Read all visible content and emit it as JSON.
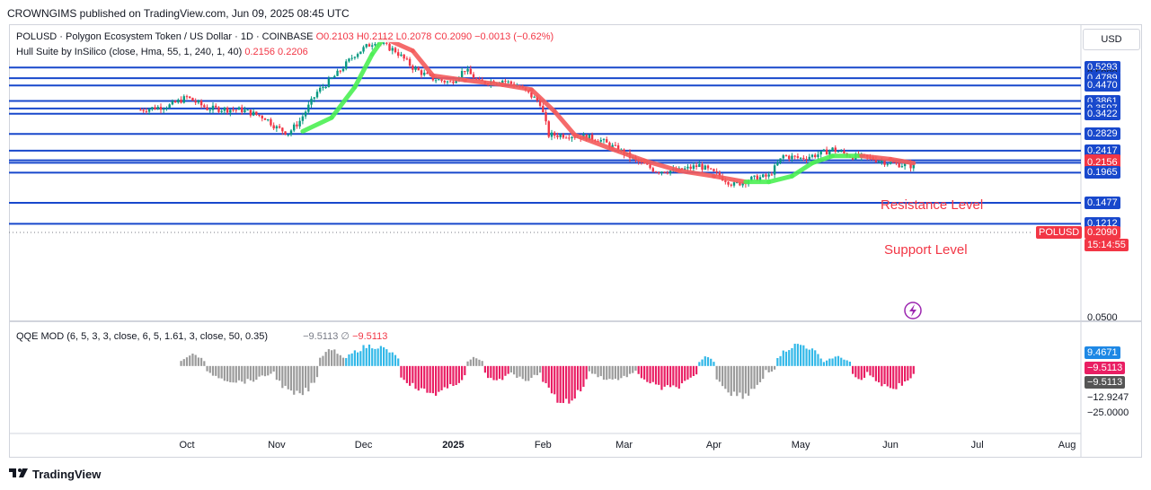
{
  "header": {
    "published": "CROWNGIMS published on TradingView.com, Jun 09, 2025 08:45 UTC"
  },
  "footer": {
    "brand": "TradingView",
    "logo": "tradingview-logo"
  },
  "legend": {
    "symbol": "POLUSD · Polygon Ecosystem Token / US Dollar · 1D · COINBASE",
    "ohlc": "O0.2103  H0.2112  L0.2078  C0.2090  −0.0013 (−0.62%)",
    "indicator_name": "Hull Suite by InSilico (close, Hma, 55, 1, 240, 1, 40)",
    "indicator_values": "0.2156  0.2206",
    "qqe_name": "QQE MOD (6, 5, 3, 3, close, 6, 5, 1.61, 3, close, 50, 0.35)",
    "qqe_v1": "−9.5113",
    "qqe_sym": "∅",
    "qqe_v2": "−9.5113"
  },
  "currency": "USD",
  "annotations": {
    "resistance": "Resistance Level",
    "support": "Support Level"
  },
  "colors": {
    "up": "#089981",
    "down": "#f23645",
    "level_line": "#1848cc",
    "hull_up": "#4cf054",
    "hull_down": "#f45b5b",
    "qqe_blue": "#31b8e8",
    "qqe_pink": "#e91e63",
    "qqe_gray": "#9b9b9b",
    "annotation": "#f23645"
  },
  "chart_data": {
    "type": "candlestick",
    "title": "POLUSD · Polygon Ecosystem Token / US Dollar · 1D · COINBASE",
    "x_ticks": [
      "Oct",
      "Nov",
      "Dec",
      "2025",
      "Feb",
      "Mar",
      "Apr",
      "May",
      "Jun",
      "Jul",
      "Aug"
    ],
    "y_scale": "log",
    "y_range": [
      0.05,
      0.6
    ],
    "y_tick_labels_plain": [
      "0.5000",
      "0.0500"
    ],
    "horizontal_levels": [
      0.5293,
      0.4789,
      0.447,
      0.3861,
      0.3597,
      0.3422,
      0.2829,
      0.2417,
      0.2206,
      0.2156,
      0.1965,
      0.1477,
      0.1212
    ],
    "price_axis_labels": [
      {
        "value": "0.5293",
        "style": "blue"
      },
      {
        "value": "0.5000",
        "style": "plain"
      },
      {
        "value": "0.4789",
        "style": "blue"
      },
      {
        "value": "0.4470",
        "style": "blue"
      },
      {
        "value": "0.3861",
        "style": "blue"
      },
      {
        "value": "0.3597",
        "style": "blue"
      },
      {
        "value": "0.3422",
        "style": "blue"
      },
      {
        "value": "0.2829",
        "style": "blue"
      },
      {
        "value": "0.2417",
        "style": "blue"
      },
      {
        "value": "0.2206",
        "style": "red"
      },
      {
        "value": "0.2156",
        "style": "red"
      },
      {
        "value": "0.1965",
        "style": "blue"
      },
      {
        "value": "0.1477",
        "style": "blue"
      },
      {
        "value": "0.1212",
        "style": "blue"
      },
      {
        "value": "0.0500",
        "style": "plain"
      }
    ],
    "last_price": {
      "symbol": "POLUSD",
      "value": "0.2090",
      "countdown": "15:14:55"
    },
    "price_path": [
      [
        "Sep 15",
        0.355
      ],
      [
        "Sep 25",
        0.37
      ],
      [
        "Oct 1",
        0.4
      ],
      [
        "Oct 8",
        0.36
      ],
      [
        "Oct 20",
        0.355
      ],
      [
        "Oct 28",
        0.33
      ],
      [
        "Nov 1",
        0.3
      ],
      [
        "Nov 5",
        0.285
      ],
      [
        "Nov 9",
        0.32
      ],
      [
        "Nov 15",
        0.42
      ],
      [
        "Nov 22",
        0.5
      ],
      [
        "Nov 28",
        0.6
      ],
      [
        "Dec 5",
        0.68
      ],
      [
        "Dec 12",
        0.62
      ],
      [
        "Dec 18",
        0.53
      ],
      [
        "Dec 24",
        0.48
      ],
      [
        "Dec 31",
        0.46
      ],
      [
        "Jan 5",
        0.52
      ],
      [
        "Jan 10",
        0.46
      ],
      [
        "Jan 18",
        0.47
      ],
      [
        "Jan 24",
        0.44
      ],
      [
        "Jan 31",
        0.38
      ],
      [
        "Feb 3",
        0.28
      ],
      [
        "Feb 10",
        0.28
      ],
      [
        "Feb 20",
        0.27
      ],
      [
        "Feb 28",
        0.24
      ],
      [
        "Mar 5",
        0.22
      ],
      [
        "Mar 12",
        0.2
      ],
      [
        "Mar 20",
        0.2
      ],
      [
        "Mar 27",
        0.21
      ],
      [
        "Apr 3",
        0.19
      ],
      [
        "Apr 8",
        0.175
      ],
      [
        "Apr 14",
        0.185
      ],
      [
        "Apr 20",
        0.19
      ],
      [
        "Apr 25",
        0.23
      ],
      [
        "May 1",
        0.225
      ],
      [
        "May 8",
        0.235
      ],
      [
        "May 12",
        0.245
      ],
      [
        "May 18",
        0.23
      ],
      [
        "May 25",
        0.225
      ],
      [
        "Jun 1",
        0.215
      ],
      [
        "Jun 9",
        0.209
      ]
    ],
    "hull_suite": [
      [
        "Nov 10",
        0.29
      ],
      [
        "Nov 20",
        0.33
      ],
      [
        "Nov 28",
        0.44
      ],
      [
        "Dec 4",
        0.6
      ],
      [
        "Dec 8",
        0.7
      ],
      [
        "Dec 18",
        0.62
      ],
      [
        "Dec 25",
        0.49
      ],
      [
        "Jan 5",
        0.47
      ],
      [
        "Jan 18",
        0.45
      ],
      [
        "Jan 28",
        0.43
      ],
      [
        "Feb 5",
        0.35
      ],
      [
        "Feb 12",
        0.28
      ],
      [
        "Feb 25",
        0.245
      ],
      [
        "Mar 8",
        0.22
      ],
      [
        "Mar 20",
        0.2
      ],
      [
        "Apr 1",
        0.19
      ],
      [
        "Apr 12",
        0.18
      ],
      [
        "Apr 20",
        0.18
      ],
      [
        "Apr 28",
        0.19
      ],
      [
        "May 5",
        0.215
      ],
      [
        "May 12",
        0.23
      ],
      [
        "May 22",
        0.23
      ],
      [
        "Jun 1",
        0.223
      ],
      [
        "Jun 9",
        0.215
      ]
    ],
    "qqe_ylim": [
      -25,
      12
    ],
    "qqe_axis_labels": [
      {
        "value": "9.4671",
        "style": "blue"
      },
      {
        "value": "−9.5113",
        "style": "pink"
      },
      {
        "value": "−9.5113",
        "style": "gray"
      },
      {
        "value": "−12.9247",
        "style": "plain"
      },
      {
        "value": "−25.0000",
        "style": "plain"
      }
    ],
    "qqe_segments": [
      {
        "from": "Sep 29",
        "to": "Oct 7",
        "color": "gray",
        "peak": 5
      },
      {
        "from": "Oct 8",
        "to": "Oct 31",
        "color": "gray",
        "peak": -7
      },
      {
        "from": "Nov 1",
        "to": "Nov 15",
        "color": "gray",
        "peak": -13
      },
      {
        "from": "Nov 16",
        "to": "Nov 24",
        "color": "gray",
        "peak": 7
      },
      {
        "from": "Nov 25",
        "to": "Dec 13",
        "color": "blue",
        "peak": 9
      },
      {
        "from": "Dec 14",
        "to": "Jan 5",
        "color": "pink",
        "peak": -12
      },
      {
        "from": "Jan 6",
        "to": "Jan 11",
        "color": "gray",
        "peak": 4
      },
      {
        "from": "Jan 12",
        "to": "Jan 20",
        "color": "pink",
        "peak": -7
      },
      {
        "from": "Jan 21",
        "to": "Jan 31",
        "color": "gray",
        "peak": -6
      },
      {
        "from": "Feb 1",
        "to": "Feb 16",
        "color": "pink",
        "peak": -16
      },
      {
        "from": "Feb 17",
        "to": "Mar 5",
        "color": "gray",
        "peak": -6
      },
      {
        "from": "Mar 6",
        "to": "Mar 26",
        "color": "pink",
        "peak": -10
      },
      {
        "from": "Mar 27",
        "to": "Apr 1",
        "color": "blue",
        "peak": 4
      },
      {
        "from": "Apr 2",
        "to": "Apr 18",
        "color": "gray",
        "peak": -13
      },
      {
        "from": "Apr 19",
        "to": "Apr 22",
        "color": "gray",
        "peak": -3
      },
      {
        "from": "Apr 23",
        "to": "May 8",
        "color": "blue",
        "peak": 9.5
      },
      {
        "from": "May 9",
        "to": "May 18",
        "color": "blue",
        "peak": 4
      },
      {
        "from": "May 19",
        "to": "May 24",
        "color": "pink",
        "peak": -6
      },
      {
        "from": "May 25",
        "to": "Jun 9",
        "color": "pink",
        "peak": -9.5
      }
    ]
  }
}
